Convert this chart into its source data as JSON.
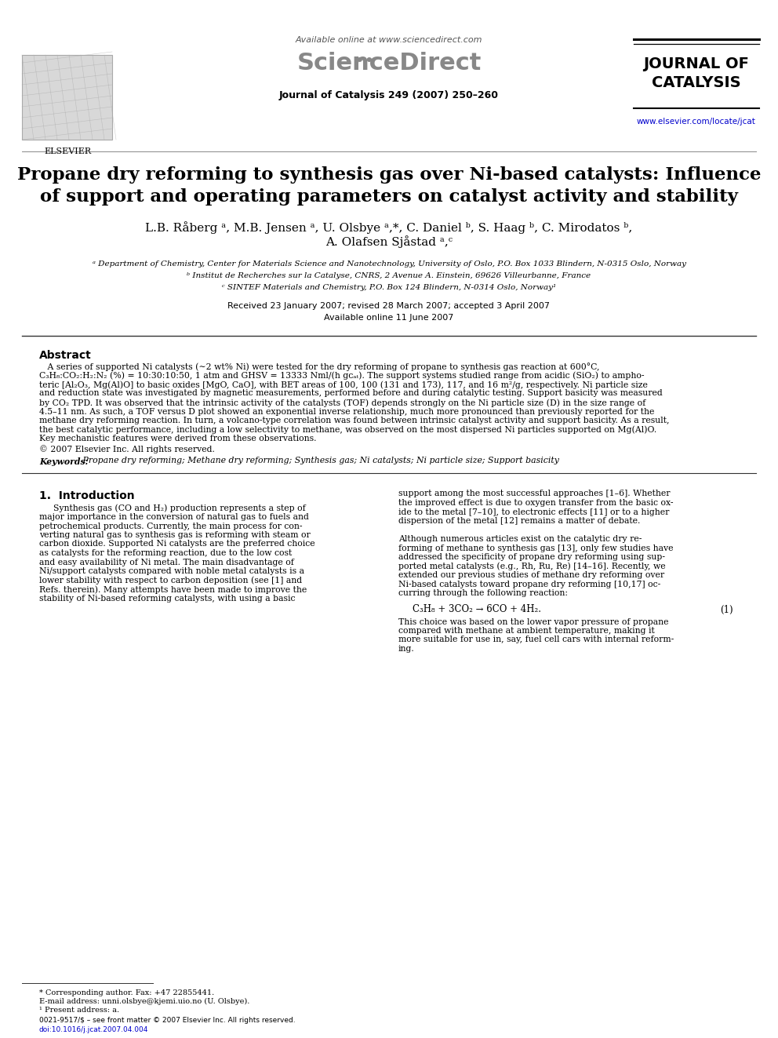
{
  "title_line1": "Propane dry reforming to synthesis gas over Ni-based catalysts: Influence",
  "title_line2": "of support and operating parameters on catalyst activity and stability",
  "authors": "L.B. Råberg ᵃ, M.B. Jensen ᵃ, U. Olsbye ᵃ,*, C. Daniel ᵇ, S. Haag ᵇ, C. Mirodatos ᵇ,",
  "authors2": "A. Olafsen Sjåstad ᵃ,ᶜ",
  "affil_a": "ᵃ Department of Chemistry, Center for Materials Science and Nanotechnology, University of Oslo, P.O. Box 1033 Blindern, N-0315 Oslo, Norway",
  "affil_b": "ᵇ Institut de Recherches sur la Catalyse, CNRS, 2 Avenue A. Einstein, 69626 Villeurbanne, France",
  "affil_c": "ᶜ SINTEF Materials and Chemistry, P.O. Box 124 Blindern, N-0314 Oslo, Norway¹",
  "received": "Received 23 January 2007; revised 28 March 2007; accepted 3 April 2007",
  "available": "Available online 11 June 2007",
  "journal_header": "Available online at www.sciencedirect.com",
  "journal_name": "Journal of Catalysis 249 (2007) 250–260",
  "journal_title_1": "JOURNAL OF",
  "journal_title_2": "CATALYSIS",
  "journal_url": "www.elsevier.com/locate/jcat",
  "elsevier_text": "ELSEVIER",
  "abstract_title": "Abstract",
  "copyright": "© 2007 Elsevier Inc. All rights reserved.",
  "keywords_label": "Keywords:",
  "keywords": "Propane dry reforming; Methane dry reforming; Synthesis gas; Ni catalysts; Ni particle size; Support basicity",
  "section1_title": "1.  Introduction",
  "footnote_star": "* Corresponding author. Fax: +47 22855441.",
  "footnote_email": "E-mail address: unni.olsbye@kjemi.uio.no (U. Olsbye).",
  "footnote_1": "¹ Present address: a.",
  "footer_issn": "0021-9517/$ – see front matter © 2007 Elsevier Inc. All rights reserved.",
  "footer_doi": "doi:10.1016/j.jcat.2007.04.004",
  "bg_color": "#ffffff",
  "text_color": "#000000",
  "blue_color": "#0000cc",
  "lines_abstract": [
    "   A series of supported Ni catalysts (∼2 wt% Ni) were tested for the dry reforming of propane to synthesis gas reaction at 600°C,",
    "C₃H₈:CO₂:H₂:N₂ (%) = 10:30:10:50, 1 atm and GHSV = 13333 Nml/(h gᴄₐₜ). The support systems studied range from acidic (SiO₂) to ampho-",
    "teric [Al₂O₃, Mg(Al)O] to basic oxides [MgO, CaO], with BET areas of 100, 100 (131 and 173), 117, and 16 m²/g, respectively. Ni particle size",
    "and reduction state was investigated by magnetic measurements, performed before and during catalytic testing. Support basicity was measured",
    "by CO₂ TPD. It was observed that the intrinsic activity of the catalysts (TOF) depends strongly on the Ni particle size (D) in the size range of",
    "4.5–11 nm. As such, a TOF versus D plot showed an exponential inverse relationship, much more pronounced than previously reported for the",
    "methane dry reforming reaction. In turn, a volcano-type correlation was found between intrinsic catalyst activity and support basicity. As a result,",
    "the best catalytic performance, including a low selectivity to methane, was observed on the most dispersed Ni particles supported on Mg(Al)O.",
    "Key mechanistic features were derived from these observations."
  ],
  "intro_left_lines": [
    "Synthesis gas (CO and H₂) production represents a step of",
    "major importance in the conversion of natural gas to fuels and",
    "petrochemical products. Currently, the main process for con-",
    "verting natural gas to synthesis gas is reforming with steam or",
    "carbon dioxide. Supported Ni catalysts are the preferred choice",
    "as catalysts for the reforming reaction, due to the low cost",
    "and easy availability of Ni metal. The main disadvantage of",
    "Ni/support catalysts compared with noble metal catalysts is a",
    "lower stability with respect to carbon deposition (see [1] and",
    "Refs. therein). Many attempts have been made to improve the",
    "stability of Ni-based reforming catalysts, with using a basic"
  ],
  "intro_right_lines": [
    "support among the most successful approaches [1–6]. Whether",
    "the improved effect is due to oxygen transfer from the basic ox-",
    "ide to the metal [7–10], to electronic effects [11] or to a higher",
    "dispersion of the metal [12] remains a matter of debate.",
    "",
    "Although numerous articles exist on the catalytic dry re-",
    "forming of methane to synthesis gas [13], only few studies have",
    "addressed the specificity of propane dry reforming using sup-",
    "ported metal catalysts (e.g., Rh, Ru, Re) [14–16]. Recently, we",
    "extended our previous studies of methane dry reforming over",
    "Ni-based catalysts toward propane dry reforming [10,17] oc-",
    "curring through the following reaction:"
  ],
  "equation": "C₃H₈ + 3CO₂ → 6CO + 4H₂.",
  "equation_number": "(1)",
  "after_eq_lines": [
    "This choice was based on the lower vapor pressure of propane",
    "compared with methane at ambient temperature, making it",
    "more suitable for use in, say, fuel cell cars with internal reform-",
    "ing."
  ]
}
